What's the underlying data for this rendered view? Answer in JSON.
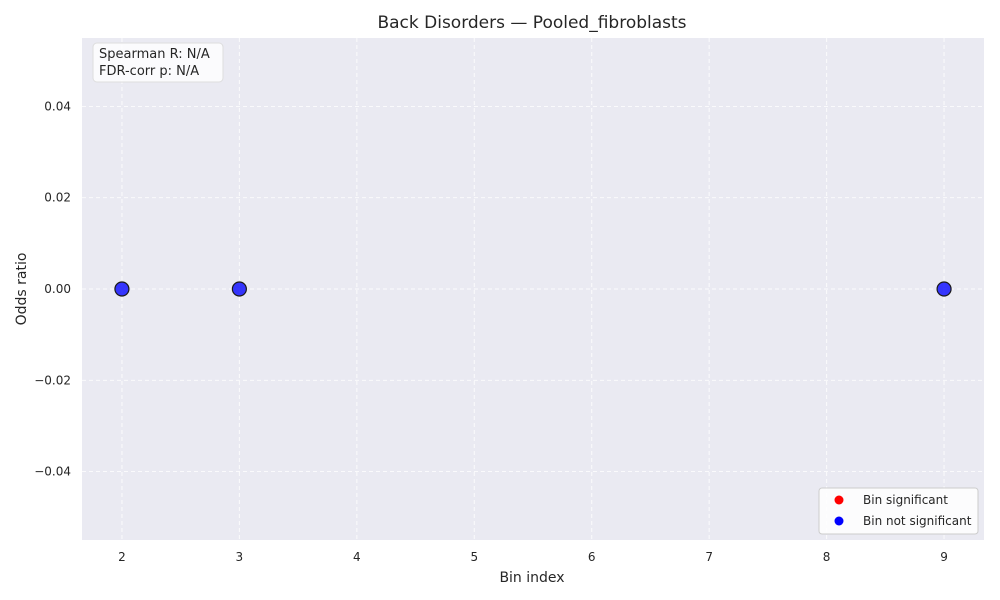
{
  "chart_data": {
    "type": "scatter",
    "title": "Back Disorders — Pooled_fibroblasts",
    "xlabel": "Bin index",
    "ylabel": "Odds ratio",
    "xlim": [
      1.66,
      9.34
    ],
    "ylim": [
      -0.055,
      0.055
    ],
    "x_ticks": [
      2,
      3,
      4,
      5,
      6,
      7,
      8,
      9
    ],
    "y_ticks": [
      0.04,
      0.02,
      0.0,
      -0.02,
      -0.04
    ],
    "x_tick_labels": [
      "2",
      "3",
      "4",
      "5",
      "6",
      "7",
      "8",
      "9"
    ],
    "y_tick_labels": [
      "0.04",
      "0.02",
      "0.00",
      "−0.02",
      "−0.04"
    ],
    "grid": true,
    "legend_placement": "bottom-right",
    "series": [
      {
        "name": "Bin significant",
        "color": "#ff0000",
        "points": []
      },
      {
        "name": "Bin not significant",
        "color": "#0000ff",
        "points": [
          {
            "x": 2,
            "y": 0.0
          },
          {
            "x": 3,
            "y": 0.0
          },
          {
            "x": 9,
            "y": 0.0
          }
        ]
      }
    ],
    "annotation": {
      "line1": "Spearman R: N/A",
      "line2": "FDR-corr p: N/A"
    }
  }
}
